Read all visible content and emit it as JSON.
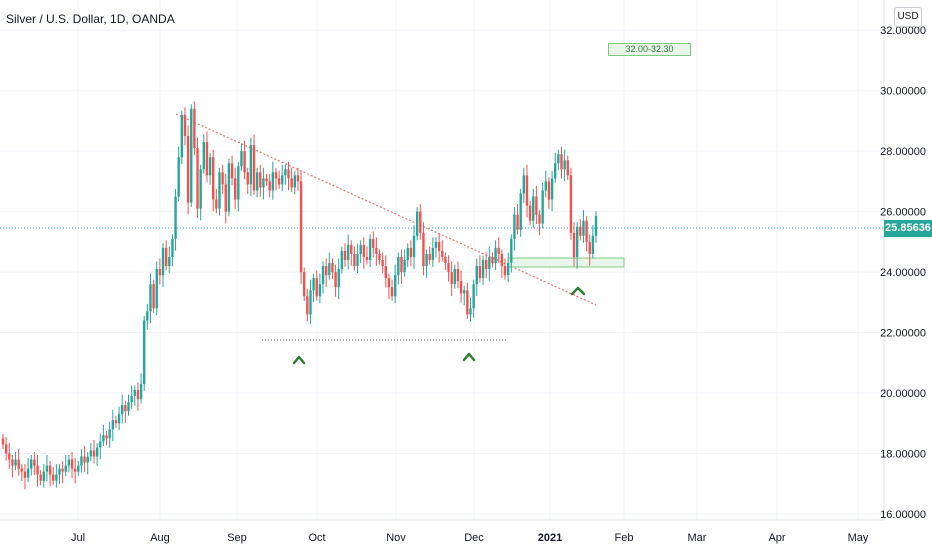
{
  "header": {
    "title": "Silver / U.S. Dollar, 1D, OANDA",
    "currency": "USD"
  },
  "chart_data": {
    "type": "candlestick",
    "title": "Silver / U.S. Dollar, 1D, OANDA",
    "x_labels": [
      "Jul",
      "Aug",
      "Sep",
      "Oct",
      "Nov",
      "Dec",
      "2021",
      "Feb",
      "Mar",
      "Apr",
      "May"
    ],
    "y_labels": [
      "16.00000",
      "18.00000",
      "20.00000",
      "22.00000",
      "24.00000",
      "26.00000",
      "28.00000",
      "30.00000",
      "32.00000"
    ],
    "ylim": [
      15.8,
      33.0
    ],
    "last_price": "25.85636",
    "annotation_zone_label": "32.00-32.30",
    "up_color": "#26a69a",
    "down_color": "#ef5350",
    "trendline_color": "#e57373",
    "arrow_color": "#2e7d32",
    "closes": [
      18.3,
      18.0,
      17.8,
      17.6,
      17.8,
      17.5,
      17.4,
      17.2,
      17.5,
      17.8,
      17.6,
      17.3,
      17.1,
      17.4,
      17.6,
      17.3,
      17.1,
      17.3,
      17.5,
      17.4,
      17.6,
      17.8,
      17.5,
      17.4,
      17.6,
      17.9,
      17.7,
      17.9,
      18.1,
      17.9,
      18.2,
      18.4,
      18.6,
      18.5,
      18.8,
      19.1,
      19.0,
      19.3,
      19.6,
      19.4,
      19.7,
      19.9,
      20.1,
      19.8,
      20.3,
      22.4,
      22.7,
      23.6,
      22.8,
      24.1,
      23.9,
      24.8,
      24.2,
      24.5,
      25.1,
      26.5,
      27.8,
      29.2,
      28.5,
      26.3,
      29.4,
      28.1,
      26.1,
      27.4,
      28.3,
      27.2,
      27.8,
      26.4,
      26.1,
      27.3,
      26.9,
      26.0,
      27.6,
      27.1,
      26.4,
      27.5,
      28.0,
      27.3,
      26.9,
      28.2,
      26.7,
      27.3,
      26.8,
      27.1,
      27.0,
      26.7,
      27.3,
      27.1,
      26.9,
      27.2,
      27.4,
      27.1,
      26.8,
      27.2,
      27.0,
      24.0,
      23.2,
      22.6,
      23.4,
      23.8,
      23.2,
      23.6,
      24.2,
      23.9,
      24.3,
      24.0,
      23.5,
      24.1,
      24.7,
      24.4,
      24.9,
      24.6,
      24.2,
      24.6,
      24.9,
      24.5,
      24.4,
      25.1,
      24.8,
      24.6,
      24.4,
      24.2,
      23.8,
      23.5,
      23.2,
      23.9,
      24.5,
      24.0,
      24.4,
      24.8,
      24.5,
      25.2,
      26.0,
      25.3,
      24.2,
      24.6,
      24.4,
      24.8,
      25.0,
      24.7,
      24.5,
      24.3,
      24.0,
      23.6,
      24.1,
      23.7,
      23.3,
      23.4,
      22.6,
      22.8,
      23.6,
      24.2,
      23.8,
      24.4,
      24.1,
      24.5,
      24.3,
      24.8,
      24.6,
      24.2,
      23.9,
      24.3,
      25.1,
      25.9,
      25.4,
      26.6,
      27.2,
      26.2,
      25.7,
      26.5,
      25.9,
      25.6,
      26.7,
      27.0,
      26.4,
      27.1,
      27.6,
      27.9,
      27.4,
      27.7,
      27.2,
      25.3,
      24.5,
      25.5,
      25.2,
      25.7,
      25.0,
      24.6,
      25.2,
      25.86
    ]
  }
}
